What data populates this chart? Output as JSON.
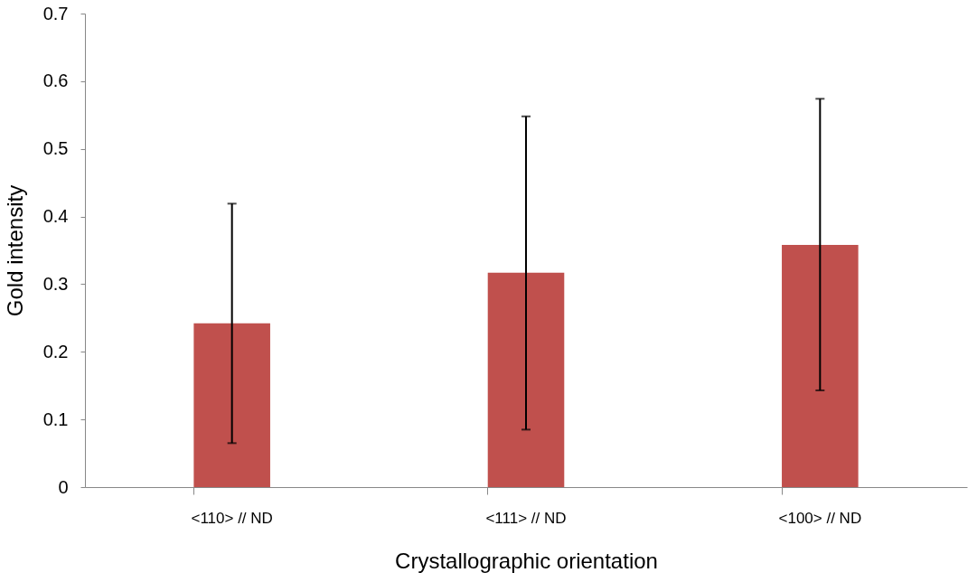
{
  "chart_data": {
    "type": "bar",
    "xlabel": "Crystallographic orientation",
    "ylabel": "Gold intensity",
    "categories": [
      "<110> // ND",
      "<111> // ND",
      "<100> // ND"
    ],
    "values": [
      0.242,
      0.317,
      0.358
    ],
    "color": "#c0504d",
    "errors": [
      [
        0.065,
        0.419
      ],
      [
        0.085,
        0.548
      ],
      [
        0.143,
        0.574
      ]
    ],
    "ylim": [
      0,
      0.7
    ],
    "yticks": [
      0,
      0.1,
      0.2,
      0.3,
      0.4,
      0.5,
      0.6,
      0.7
    ],
    "grid": false
  }
}
